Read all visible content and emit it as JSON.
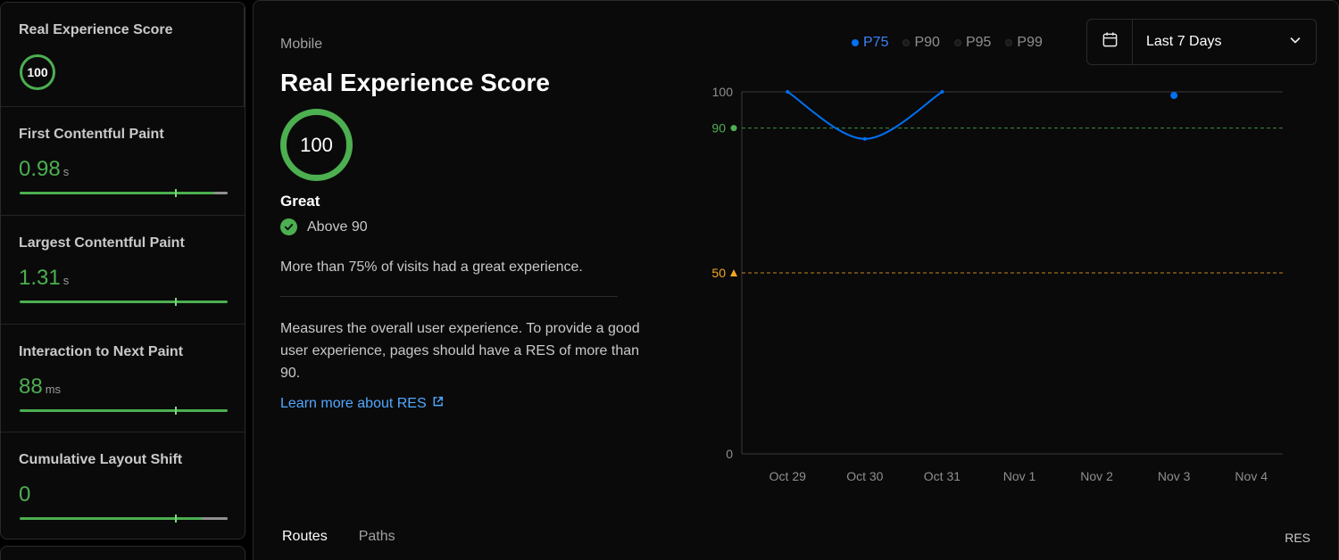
{
  "sidebar": {
    "metrics": [
      {
        "title": "Real Experience Score",
        "score": "100"
      },
      {
        "title": "First Contentful Paint",
        "value": "0.98",
        "unit": "s"
      },
      {
        "title": "Largest Contentful Paint",
        "value": "1.31",
        "unit": "s"
      },
      {
        "title": "Interaction to Next Paint",
        "value": "88",
        "unit": "ms"
      },
      {
        "title": "Cumulative Layout Shift",
        "value": "0",
        "unit": ""
      }
    ]
  },
  "main": {
    "device": "Mobile",
    "title": "Real Experience Score",
    "score": "100",
    "rating": "Great",
    "threshold": "Above 90",
    "summary": "More than 75% of visits had a great experience.",
    "description": "Measures the overall user experience. To provide a good user experience, pages should have a RES of more than 90.",
    "learn_more": "Learn more about RES"
  },
  "legend": [
    {
      "label": "P75",
      "active": true
    },
    {
      "label": "P90",
      "active": false
    },
    {
      "label": "P95",
      "active": false
    },
    {
      "label": "P99",
      "active": false
    }
  ],
  "date_range": {
    "label": "Last 7 Days",
    "icon": "calendar-icon"
  },
  "colors": {
    "good": "#4caf50",
    "warning": "#f5a623",
    "series": "#0070f3"
  },
  "chart_data": {
    "type": "line",
    "categories": [
      "Oct 29",
      "Oct 30",
      "Oct 31",
      "Nov 1",
      "Nov 2",
      "Nov 3",
      "Nov 4"
    ],
    "ylim": [
      0,
      100
    ],
    "yticks": [
      "0",
      "100"
    ],
    "thresholds": [
      {
        "value": 90,
        "label": "90",
        "color": "#4caf50"
      },
      {
        "value": 50,
        "label": "50",
        "color": "#f5a623"
      }
    ],
    "series": [
      {
        "name": "P75",
        "values": [
          100,
          87,
          100,
          null,
          null,
          99,
          null
        ]
      }
    ]
  },
  "tabs": [
    {
      "label": "Routes",
      "active": true
    },
    {
      "label": "Paths",
      "active": false
    }
  ],
  "table": {
    "column_header": "RES"
  }
}
